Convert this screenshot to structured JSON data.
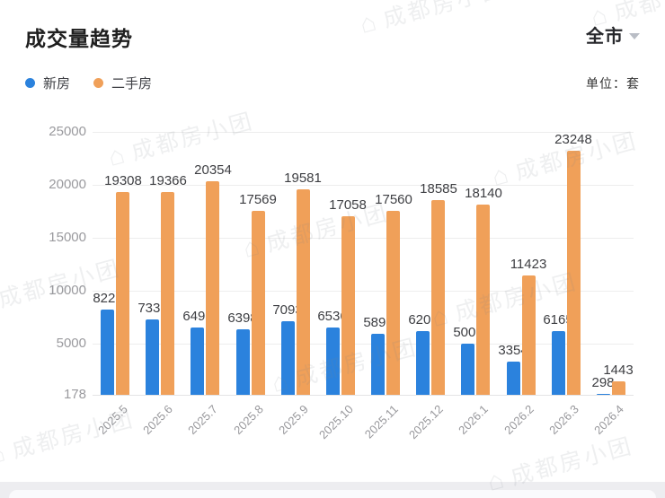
{
  "header": {
    "title": "成交量趋势",
    "region": "全市",
    "unit_label": "单位：套"
  },
  "legend": [
    {
      "label": "新房",
      "color": "#2b82dd"
    },
    {
      "label": "二手房",
      "color": "#f0a059"
    }
  ],
  "watermark": {
    "text": "成都房小团",
    "logo": "⌂"
  },
  "chart_data": {
    "type": "bar",
    "title": "成交量趋势",
    "unit": "套",
    "categories": [
      "2025.5",
      "2025.6",
      "2025.7",
      "2025.8",
      "2025.9",
      "2025.10",
      "2025.11",
      "2025.12",
      "2026.1",
      "2026.2",
      "2026.3",
      "2026.4"
    ],
    "series": [
      {
        "name": "新房",
        "color": "#2b82dd",
        "values": [
          8227,
          7336,
          6491,
          6398,
          7093,
          6536,
          5898,
          6203,
          5007,
          3354,
          6165,
          298
        ]
      },
      {
        "name": "二手房",
        "color": "#f0a059",
        "values": [
          19308,
          19366,
          20354,
          17569,
          19581,
          17058,
          17560,
          18585,
          18140,
          11423,
          23248,
          1443
        ]
      }
    ],
    "yticks": [
      178,
      5000,
      10000,
      15000,
      20000,
      25000
    ],
    "ylim": [
      178,
      25000
    ],
    "grid": true,
    "data_labels": true,
    "legend_position": "top-left",
    "xlabel": "",
    "ylabel": ""
  }
}
